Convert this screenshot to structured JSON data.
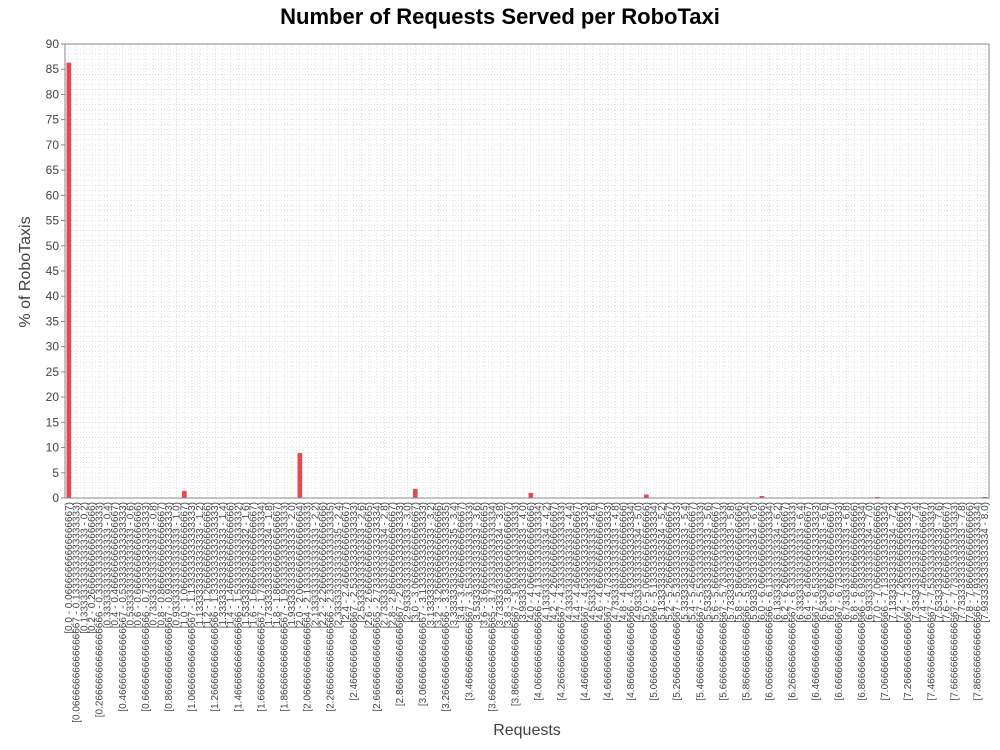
{
  "colors": {
    "bar": "#e8474b",
    "grid": "#cccccc",
    "axis": "#888888",
    "title": "#000000",
    "label": "#404040"
  },
  "chart_data": {
    "type": "bar",
    "title": "Number of Requests Served per RoboTaxi",
    "xlabel": "Requests",
    "ylabel": "% of RoboTaxis",
    "ylim": [
      0,
      90
    ],
    "yticks": [
      0,
      5,
      10,
      15,
      20,
      25,
      30,
      35,
      40,
      45,
      50,
      55,
      60,
      65,
      70,
      75,
      80,
      85,
      90
    ],
    "grid": true,
    "legend": "none",
    "categories": [
      "[0.0 - 0.06666666666666667)",
      "[0.06666666666666667 - 0.13333333333333333)",
      "[0.13333333333333333 - 0.2)",
      "[0.2 - 0.26666666666666666)",
      "[0.26666666666666666 - 0.3333333333333333)",
      "[0.3333333333333333 - 0.4)",
      "[0.4 - 0.4666666666666667)",
      "[0.4666666666666667 - 0.5333333333333333)",
      "[0.5333333333333333 - 0.6)",
      "[0.6 - 0.6666666666666666)",
      "[0.6666666666666666 - 0.7333333333333333)",
      "[0.7333333333333333 - 0.8)",
      "[0.8 - 0.8666666666666667)",
      "[0.8666666666666667 - 0.9333333333333333)",
      "[0.9333333333333333 - 1.0)",
      "[1.0 - 1.0666666666666667)",
      "[1.0666666666666667 - 1.1333333333333333)",
      "[1.1333333333333333 - 1.2)",
      "[1.2 - 1.2666666666666666)",
      "[1.2666666666666666 - 1.3333333333333333)",
      "[1.3333333333333333 - 1.4)",
      "[1.4 - 1.4666666666666666)",
      "[1.4666666666666666 - 1.5333333333333332)",
      "[1.5333333333333332 - 1.6)",
      "[1.6 - 1.6666666666666667)",
      "[1.6666666666666667 - 1.7333333333333334)",
      "[1.7333333333333334 - 1.8)",
      "[1.8 - 1.8666666666666667)",
      "[1.8666666666666667 - 1.9333333333333333)",
      "[1.9333333333333333 - 2.0)",
      "[2.0 - 2.0666666666666664)",
      "[2.0666666666666664 - 2.1333333333333333)",
      "[2.1333333333333333 - 2.2)",
      "[2.2 - 2.2666666666666666)",
      "[2.2666666666666666 - 2.3333333333333335)",
      "[2.3333333333333335 - 2.4)",
      "[2.4 - 2.466666666666667)",
      "[2.466666666666667 - 2.533333333333333)",
      "[2.533333333333333 - 2.6)",
      "[2.6 - 2.6666666666666665)",
      "[2.6666666666666665 - 2.7333333333333334)",
      "[2.7333333333333334 - 2.8)",
      "[2.8 - 2.8666666666666667)",
      "[2.8666666666666667 - 2.933333333333333)",
      "[2.933333333333333 - 3.0)",
      "[3.0 - 3.066666666666667)",
      "[3.066666666666667 - 3.1333333333333333)",
      "[3.1333333333333333 - 3.2)",
      "[3.2 - 3.2666666666666666)",
      "[3.2666666666666666 - 3.3333333333333335)",
      "[3.3333333333333335 - 3.4)",
      "[3.4 - 3.466666666666667)",
      "[3.466666666666667 - 3.533333333333333)",
      "[3.533333333333333 - 3.6)",
      "[3.6 - 3.6666666666666665)",
      "[3.6666666666666665 - 3.7333333333333334)",
      "[3.7333333333333334 - 3.8)",
      "[3.8 - 3.8666666666666667)",
      "[3.8666666666666667 - 3.933333333333333)",
      "[3.933333333333333 - 4.0)",
      "[4.0 - 4.066666666666666)",
      "[4.066666666666666 - 4.133333333333334)",
      "[4.133333333333334 - 4.2)",
      "[4.2 - 4.266666666666667)",
      "[4.266666666666667 - 4.333333333333333)",
      "[4.333333333333333 - 4.4)",
      "[4.4 - 4.466666666666667)",
      "[4.466666666666667 - 4.533333333333333)",
      "[4.533333333333333 - 4.6)",
      "[4.6 - 4.666666666666667)",
      "[4.666666666666667 - 4.733333333333333)",
      "[4.733333333333333 - 4.8)",
      "[4.8 - 4.866666666666666)",
      "[4.866666666666666 - 4.933333333333334)",
      "[4.933333333333334 - 5.0)",
      "[5.0 - 5.066666666666666)",
      "[5.066666666666666 - 5.133333333333334)",
      "[5.133333333333334 - 5.2)",
      "[5.2 - 5.266666666666667)",
      "[5.266666666666667 - 5.333333333333333)",
      "[5.333333333333333 - 5.4)",
      "[5.4 - 5.466666666666667)",
      "[5.466666666666667 - 5.533333333333333)",
      "[5.533333333333333 - 5.6)",
      "[5.6 - 5.666666666666667)",
      "[5.666666666666667 - 5.733333333333333)",
      "[5.733333333333333 - 5.8)",
      "[5.8 - 5.866666666666666)",
      "[5.866666666666666 - 5.933333333333334)",
      "[5.933333333333334 - 6.0)",
      "[6.0 - 6.066666666666666)",
      "[6.066666666666666 - 6.133333333333334)",
      "[6.133333333333334 - 6.2)",
      "[6.2 - 6.266666666666667)",
      "[6.266666666666667 - 6.333333333333333)",
      "[6.333333333333333 - 6.4)",
      "[6.4 - 6.466666666666667)",
      "[6.466666666666667 - 6.533333333333333)",
      "[6.533333333333333 - 6.6)",
      "[6.6 - 6.666666666666667)",
      "[6.666666666666667 - 6.733333333333333)",
      "[6.733333333333333 - 6.8)",
      "[6.8 - 6.866666666666666)",
      "[6.866666666666666 - 6.933333333333334)",
      "[6.933333333333334 - 7.0)",
      "[7.0 - 7.066666666666666)",
      "[7.066666666666666 - 7.133333333333334)",
      "[7.133333333333334 - 7.2)",
      "[7.2 - 7.266666666666667)",
      "[7.266666666666667 - 7.333333333333333)",
      "[7.333333333333333 - 7.4)",
      "[7.4 - 7.466666666666667)",
      "[7.466666666666667 - 7.533333333333333)",
      "[7.533333333333333 - 7.6)",
      "[7.6 - 7.666666666666667)",
      "[7.666666666666667 - 7.733333333333333)",
      "[7.733333333333333 - 7.8)",
      "[7.8 - 7.866666666666666)",
      "[7.866666666666666 - 7.933333333333334)",
      "[7.933333333333334 - 8.0)"
    ],
    "values": [
      86.3,
      0,
      0,
      0,
      0,
      0,
      0,
      0,
      0,
      0,
      0,
      0,
      0,
      0,
      0,
      1.4,
      0,
      0,
      0,
      0,
      0,
      0,
      0,
      0,
      0,
      0,
      0,
      0,
      0,
      0,
      8.9,
      0,
      0,
      0,
      0,
      0,
      0,
      0,
      0,
      0,
      0,
      0,
      0,
      0,
      0,
      1.8,
      0,
      0,
      0,
      0,
      0,
      0,
      0,
      0,
      0,
      0,
      0,
      0,
      0,
      0,
      1.0,
      0,
      0,
      0,
      0,
      0,
      0,
      0,
      0,
      0,
      0,
      0,
      0,
      0,
      0,
      0.7,
      0,
      0,
      0,
      0,
      0,
      0,
      0,
      0,
      0,
      0,
      0,
      0,
      0,
      0,
      0.4,
      0,
      0,
      0,
      0,
      0,
      0,
      0,
      0,
      0,
      0,
      0,
      0,
      0,
      0,
      0.2,
      0,
      0,
      0,
      0,
      0,
      0,
      0,
      0,
      0,
      0,
      0,
      0,
      0,
      0.2
    ]
  }
}
